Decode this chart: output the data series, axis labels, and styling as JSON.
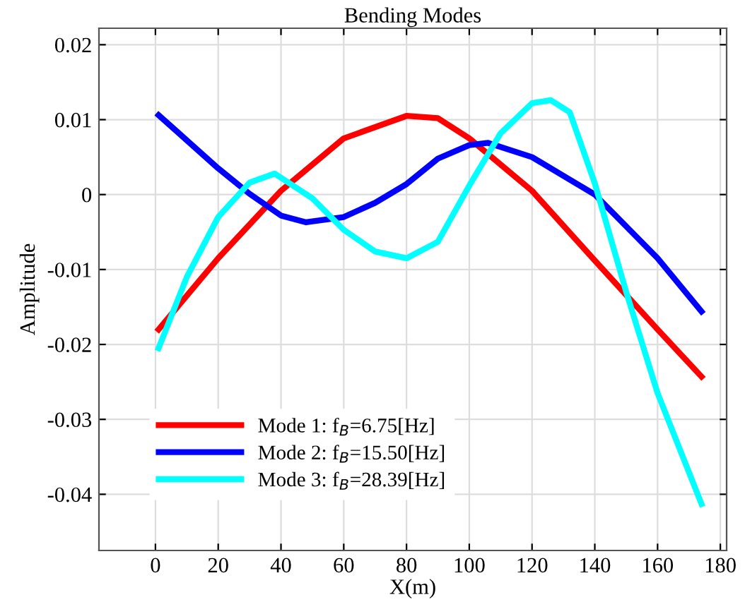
{
  "chart_data": {
    "type": "line",
    "title": "Bending Modes",
    "xlabel": "X(m)",
    "ylabel": "Amplitude",
    "xlim": [
      -18,
      182
    ],
    "ylim": [
      -0.0475,
      0.0222
    ],
    "xticks": [
      0,
      20,
      40,
      60,
      80,
      100,
      120,
      140,
      160,
      180
    ],
    "yticks": [
      {
        "value": -0.04,
        "label": "-0.04"
      },
      {
        "value": -0.03,
        "label": "-0.03"
      },
      {
        "value": -0.02,
        "label": "-0.02"
      },
      {
        "value": -0.01,
        "label": "-0.01"
      },
      {
        "value": 0,
        "label": "0"
      },
      {
        "value": 0.01,
        "label": "0.01"
      },
      {
        "value": 0.02,
        "label": "0.02"
      }
    ],
    "grid": true,
    "legend": "bottom left",
    "marker": "none",
    "line_style": "solid",
    "series": [
      {
        "name": "Mode 1: f$_{B}$=6.75[Hz]",
        "color": "#ff0000",
        "x": [
          1,
          20,
          40,
          60,
          80,
          90,
          100,
          120,
          140,
          160,
          174
        ],
        "values": [
          -0.018,
          -0.0085,
          0.0005,
          0.0075,
          0.0105,
          0.0102,
          0.0075,
          0.0005,
          -0.0088,
          -0.018,
          -0.0243
        ]
      },
      {
        "name": "Mode 2: f$_{B}$=15.50[Hz]",
        "color": "#0000ff",
        "x": [
          1,
          20,
          30,
          40,
          48,
          60,
          70,
          80,
          90,
          100,
          106,
          120,
          140,
          160,
          174
        ],
        "values": [
          0.0106,
          0.0035,
          0.0001,
          -0.0028,
          -0.0037,
          -0.003,
          -0.0011,
          0.0014,
          0.0048,
          0.0066,
          0.0069,
          0.005,
          0.0,
          -0.0085,
          -0.0156
        ]
      },
      {
        "name": "Mode 3: f$_{B}$=28.39[Hz]",
        "color": "#00ffff",
        "x": [
          1,
          10,
          20,
          30,
          38,
          50,
          60,
          70,
          80,
          90,
          100,
          110,
          120,
          126,
          132,
          140,
          150,
          160,
          174
        ],
        "values": [
          -0.0205,
          -0.011,
          -0.003,
          0.0016,
          0.0028,
          -0.0005,
          -0.0047,
          -0.0076,
          -0.0085,
          -0.0063,
          0.0012,
          0.0082,
          0.0122,
          0.0126,
          0.011,
          0.0015,
          -0.013,
          -0.0265,
          -0.0413
        ]
      }
    ]
  }
}
